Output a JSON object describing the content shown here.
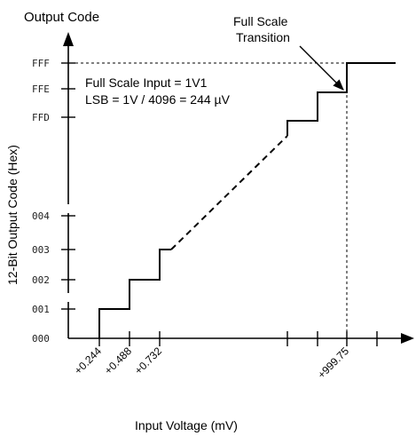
{
  "title": "Output Code",
  "y_axis_title": "12-Bit Output Code (Hex)",
  "x_axis_title": "Input Voltage (mV)",
  "annotation": {
    "line1": "Full Scale Input = 1V1",
    "line2": "LSB = 1V / 4096 = 244 µV"
  },
  "callout": {
    "line1": "Full Scale",
    "line2": "Transition"
  },
  "y_ticks": [
    "FFF",
    "FFE",
    "FFD",
    "004",
    "003",
    "002",
    "001",
    "000"
  ],
  "x_ticks": [
    "+0.244",
    "+0.488",
    "+0.732",
    "+999.75"
  ],
  "chart_data": {
    "type": "line",
    "title": "Output Code",
    "xlabel": "Input Voltage (mV)",
    "ylabel": "12-Bit Output Code (Hex)",
    "x_tick_labels": [
      "+0.244",
      "+0.488",
      "+0.732",
      "+999.75"
    ],
    "y_tick_labels": [
      "000",
      "001",
      "002",
      "003",
      "004",
      "FFD",
      "FFE",
      "FFF"
    ],
    "steps": [
      {
        "x_start_mV": 0.244,
        "code": "001"
      },
      {
        "x_start_mV": 0.488,
        "code": "002"
      },
      {
        "x_start_mV": 0.732,
        "code": "003"
      },
      {
        "x_start_mV": 999.75,
        "code": "FFF"
      }
    ],
    "full_scale_input": "1V1",
    "lsb": "1V / 4096 = 244 µV"
  }
}
